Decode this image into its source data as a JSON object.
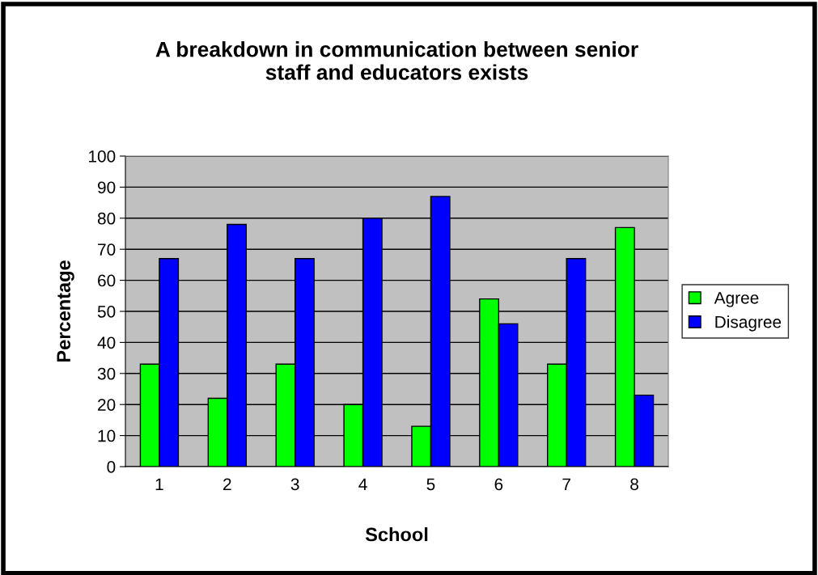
{
  "chart_data": {
    "type": "bar",
    "title": "A breakdown in communication between senior\nstaff and educators exists",
    "xlabel": "School",
    "ylabel": "Percentage",
    "categories": [
      "1",
      "2",
      "3",
      "4",
      "5",
      "6",
      "7",
      "8"
    ],
    "series": [
      {
        "name": "Agree",
        "color": "#00ff00",
        "values": [
          33,
          22,
          33,
          20,
          13,
          54,
          33,
          77
        ]
      },
      {
        "name": "Disagree",
        "color": "#0000ff",
        "values": [
          67,
          78,
          67,
          80,
          87,
          46,
          67,
          23
        ]
      }
    ],
    "ylim": [
      0,
      100
    ],
    "yticks": [
      0,
      10,
      20,
      30,
      40,
      50,
      60,
      70,
      80,
      90,
      100
    ],
    "grid": "y",
    "legend": "right"
  }
}
